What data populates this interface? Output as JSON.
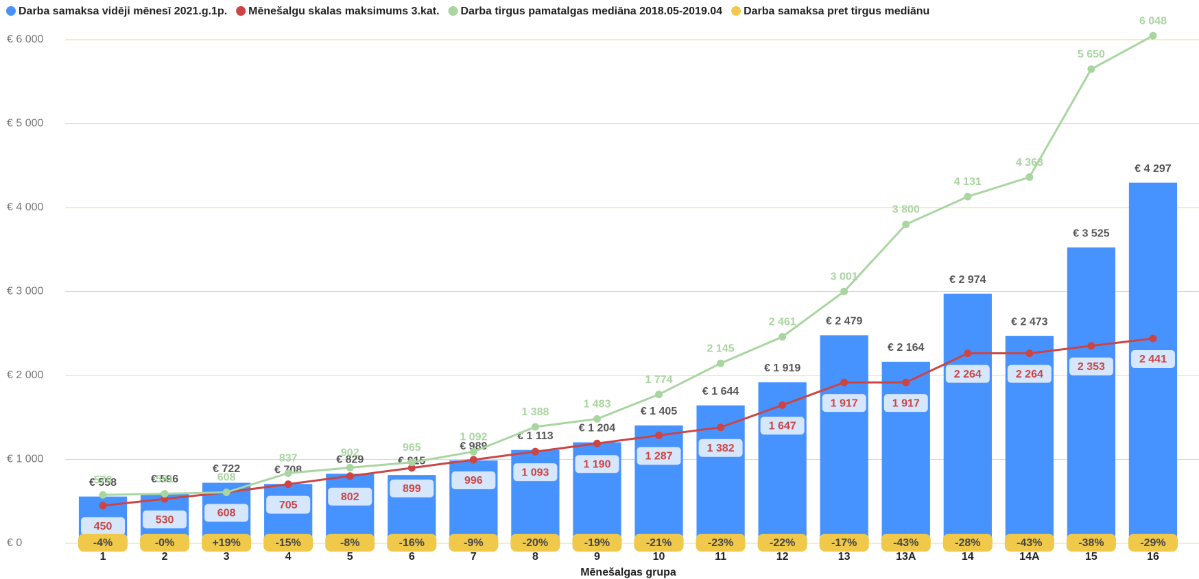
{
  "chart_data": {
    "type": "bar",
    "x_label": "Mēnešalgas grupa",
    "categories": [
      "1",
      "2",
      "3",
      "4",
      "5",
      "6",
      "7",
      "8",
      "9",
      "10",
      "11",
      "12",
      "13",
      "13A",
      "14",
      "14A",
      "15",
      "16"
    ],
    "ylim": [
      0,
      6200
    ],
    "yticks": [
      {
        "value": 0,
        "label": "€ 0"
      },
      {
        "value": 1000,
        "label": "€ 1 000"
      },
      {
        "value": 2000,
        "label": "€ 2 000"
      },
      {
        "value": 3000,
        "label": "€ 3 000"
      },
      {
        "value": 4000,
        "label": "€ 4 000"
      },
      {
        "value": 5000,
        "label": "€ 5 000"
      },
      {
        "value": 6000,
        "label": "€ 6 000"
      }
    ],
    "grid": true,
    "legend": "top-left",
    "series": [
      {
        "name": "Darba samaksa vidēji mēnesī 2021.g.1p.",
        "type": "bar",
        "color": "#4693ff",
        "values": [
          558,
          596,
          722,
          708,
          829,
          815,
          989,
          1113,
          1204,
          1405,
          1644,
          1919,
          2479,
          2164,
          2974,
          2473,
          3525,
          4297
        ],
        "value_labels": [
          "€ 558",
          "€ 596",
          "€ 722",
          "€ 708",
          "€ 829",
          "€ 815",
          "€ 989",
          "€ 1 113",
          "€ 1 204",
          "€ 1 405",
          "€ 1 644",
          "€ 1 919",
          "€ 2 479",
          "€ 2 164",
          "€ 2 974",
          "€ 2 473",
          "€ 3 525",
          "€ 4 297"
        ]
      },
      {
        "name": "Mēnešalgu skalas maksimums 3.kat.",
        "type": "line",
        "color": "#cc4444",
        "values": [
          450,
          530,
          608,
          705,
          802,
          899,
          996,
          1093,
          1190,
          1287,
          1382,
          1647,
          1917,
          1917,
          2264,
          2264,
          2353,
          2441
        ],
        "value_labels": [
          "450",
          "530",
          "608",
          "705",
          "802",
          "899",
          "996",
          "1 093",
          "1 190",
          "1 287",
          "1 382",
          "1 647",
          "1 917",
          "1 917",
          "2 264",
          "2 264",
          "2 353",
          "2 441"
        ]
      },
      {
        "name": "Darba tirgus pamatalgas mediāna 2018.05-2019.04",
        "type": "line",
        "color": "#a8d5a0",
        "values": [
          578,
          591,
          608,
          837,
          902,
          965,
          1092,
          1388,
          1483,
          1774,
          2145,
          2461,
          3001,
          3800,
          4131,
          4363,
          5650,
          6048
        ],
        "value_labels": [
          "578",
          "591",
          "608",
          "837",
          "902",
          "965",
          "1 092",
          "1 388",
          "1 483",
          "1 774",
          "2 145",
          "2 461",
          "3 001",
          "3 800",
          "4 131",
          "4 363",
          "5 650",
          "6 048"
        ]
      },
      {
        "name": "Darba samaksa pret tirgus mediānu",
        "type": "badge",
        "color": "#f0c94a",
        "values": [
          -4,
          0,
          19,
          -15,
          -8,
          -16,
          -9,
          -20,
          -19,
          -21,
          -23,
          -22,
          -17,
          -43,
          -28,
          -43,
          -38,
          -29
        ],
        "value_labels": [
          "-4%",
          "-0%",
          "+19%",
          "-15%",
          "-8%",
          "-16%",
          "-9%",
          "-20%",
          "-19%",
          "-21%",
          "-23%",
          "-22%",
          "-17%",
          "-43%",
          "-28%",
          "-43%",
          "-38%",
          "-29%"
        ]
      }
    ]
  }
}
